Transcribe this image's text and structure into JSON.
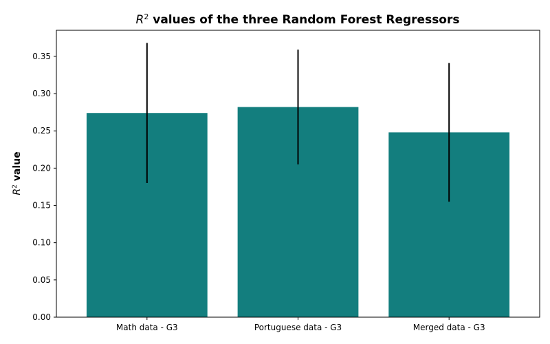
{
  "chart_data": {
    "type": "bar",
    "title_prefix": "R",
    "title_sup": "2",
    "title_rest": " values of the three Random Forest Regressors",
    "xlabel": "",
    "ylabel_prefix": "R",
    "ylabel_sup": "2",
    "ylabel_rest": " value",
    "categories": [
      "Math data - G3",
      "Portuguese data - G3",
      "Merged data - G3"
    ],
    "values": [
      0.274,
      0.282,
      0.248
    ],
    "error": [
      0.094,
      0.077,
      0.093
    ],
    "ylim": [
      0,
      0.385
    ],
    "yticks": [
      "0.00",
      "0.05",
      "0.10",
      "0.15",
      "0.20",
      "0.25",
      "0.30",
      "0.35"
    ],
    "bar_color": "#137e7e",
    "error_color": "#000000",
    "grid": false,
    "legend": "none"
  }
}
